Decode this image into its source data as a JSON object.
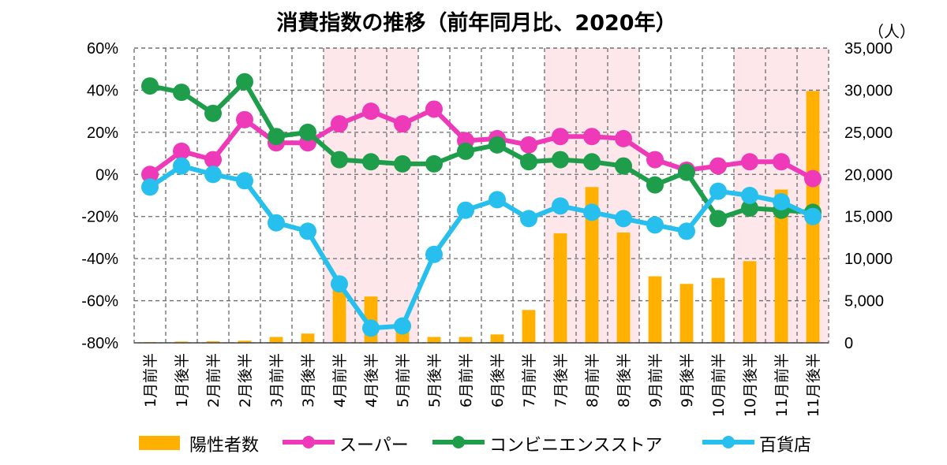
{
  "chart_data": {
    "type": "bar+line",
    "title": "消費指数の推移（前年同月比、2020年）",
    "right_axis_unit": "（人）",
    "categories": [
      "1月前半",
      "1月後半",
      "2月前半",
      "2月後半",
      "3月前半",
      "3月後半",
      "4月前半",
      "4月後半",
      "5月前半",
      "5月後半",
      "6月前半",
      "6月後半",
      "7月前半",
      "7月後半",
      "8月前半",
      "8月後半",
      "9月前半",
      "9月後半",
      "10月前半",
      "10月後半",
      "11月前半",
      "11月後半"
    ],
    "left_axis": {
      "min": -80,
      "max": 60,
      "ticks": [
        60,
        40,
        20,
        0,
        -20,
        -40,
        -60,
        -80
      ],
      "tick_labels": [
        "60%",
        "40%",
        "20%",
        "0%",
        "-20%",
        "-40%",
        "-60%",
        "-80%"
      ]
    },
    "right_axis": {
      "min": 0,
      "max": 35000,
      "ticks": [
        35000,
        30000,
        25000,
        20000,
        15000,
        10000,
        5000,
        0
      ],
      "tick_labels": [
        "35,000",
        "30,000",
        "25,000",
        "20,000",
        "15,000",
        "10,000",
        "5,000",
        "0"
      ]
    },
    "shaded_periods": [
      [
        6,
        8
      ],
      [
        13,
        15
      ],
      [
        19,
        21
      ]
    ],
    "bar_series": {
      "name": "陽性者数",
      "color": "#FFB000",
      "values": [
        100,
        150,
        180,
        250,
        700,
        1100,
        7000,
        5500,
        1700,
        700,
        700,
        1000,
        3900,
        13000,
        18500,
        13100,
        7900,
        7000,
        7700,
        9700,
        18200,
        29900
      ]
    },
    "line_series": [
      {
        "name": "スーパー",
        "color": "#EE3AB8",
        "values": [
          0,
          11,
          7,
          26,
          15,
          15,
          24,
          30,
          24,
          31,
          16,
          17,
          14,
          18,
          18,
          17,
          7,
          2,
          4,
          6,
          6,
          -2
        ]
      },
      {
        "name": "コンビニエンスストア",
        "color": "#1E9E4A",
        "values": [
          42,
          39,
          29,
          44,
          18,
          20,
          7,
          6,
          5,
          5,
          11,
          14,
          6,
          7,
          6,
          4,
          -5,
          1,
          -21,
          -16,
          -17,
          -18
        ]
      },
      {
        "name": "百貨店",
        "color": "#27C0EE",
        "values": [
          -6,
          4,
          0,
          -3,
          -23,
          -27,
          -52,
          -73,
          -72,
          -38,
          -17,
          -12,
          -21,
          -15,
          -18,
          -21,
          -24,
          -27,
          -8,
          -10,
          -13,
          -20
        ]
      }
    ],
    "legend": [
      "陽性者数",
      "スーパー",
      "コンビニエンスストア",
      "百貨店"
    ]
  }
}
